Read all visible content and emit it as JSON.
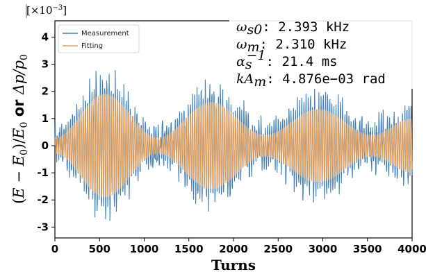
{
  "chart_data": {
    "type": "line",
    "xlabel": "Turns",
    "ylabel": "(E − E0)/E0 or Δp/p0",
    "ylabel_parts": {
      "open": "(",
      "E": "E",
      "minus": " − ",
      "E0_base": "E",
      "sub0": "0",
      "close_div": ")/",
      "E0b_base": "E",
      "sub0b": "0",
      "or": " or ",
      "delta_p": "Δp/p",
      "sub0c": "0"
    },
    "y_scale": {
      "times": "[×10",
      "exp": "−3",
      "close": "]"
    },
    "xlim": [
      0,
      4000
    ],
    "ylim": [
      -3.4,
      4.6
    ],
    "xticks": [
      0,
      500,
      1000,
      1500,
      2000,
      2500,
      3000,
      3500,
      4000
    ],
    "yticks": [
      -3,
      -2,
      -1,
      0,
      1,
      2,
      3,
      4
    ],
    "grid": false,
    "legend": {
      "placement": "upper-left",
      "entries": [
        {
          "name": "Measurement",
          "color": "#3f7fbf"
        },
        {
          "name": "Fitting",
          "color": "#f0a050"
        }
      ]
    },
    "series": [
      {
        "name": "Measurement",
        "color": "#3f7fbf",
        "model": "noisy beating oscillation around the fit, peak |y| up to about 3.3",
        "peaks": [
          [
            0,
            0.5
          ],
          [
            560,
            3.3
          ],
          [
            1150,
            0.8
          ],
          [
            1780,
            2.9
          ],
          [
            2350,
            1.0
          ],
          [
            2950,
            2.4
          ],
          [
            3500,
            1.2
          ],
          [
            4000,
            1.6
          ]
        ]
      },
      {
        "name": "Fitting",
        "color": "#f0a050",
        "envelope_amplitude": [
          [
            0,
            0.3
          ],
          [
            560,
            1.9
          ],
          [
            1150,
            0.3
          ],
          [
            1750,
            1.6
          ],
          [
            2350,
            0.4
          ],
          [
            2950,
            1.35
          ],
          [
            3550,
            0.4
          ],
          [
            4000,
            1.0
          ]
        ]
      }
    ]
  },
  "annotations": [
    {
      "sym": "ω",
      "sub": "s0",
      "sup": "",
      "text": ": 2.393 kHz"
    },
    {
      "sym": "ω",
      "sub": "m",
      "sup": "",
      "text": ": 2.310 kHz"
    },
    {
      "sym": "α",
      "sub": "s",
      "sup": "−1",
      "text": ": 21.4 ms"
    },
    {
      "sym": "kA",
      "sub": "m",
      "sup": "",
      "text": ": 4.876e−03 rad"
    }
  ]
}
